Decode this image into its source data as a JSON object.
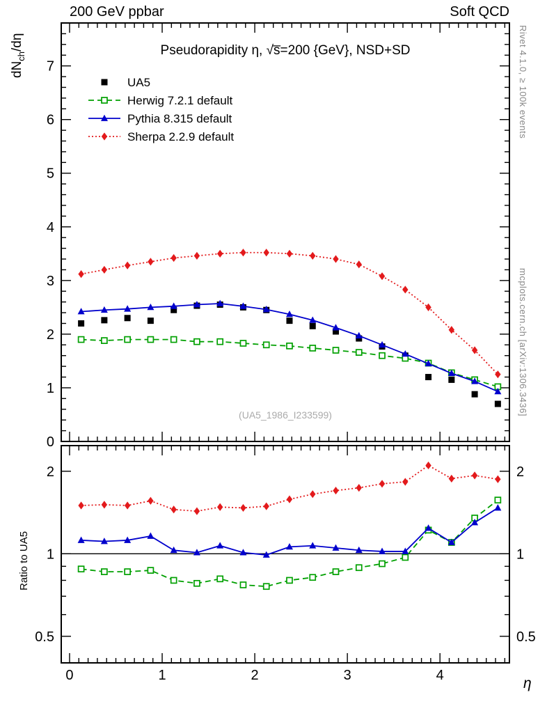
{
  "header": {
    "left": "200 GeV ppbar",
    "right": "Soft QCD"
  },
  "side_texts": {
    "rivet": "Rivet 4.1.0, ≥ 100k events",
    "mcplots": "mcplots.cern.ch [arXiv:1306.3436]"
  },
  "labels": {
    "ylabel_main_pre": "dN",
    "ylabel_main_sub": "ch",
    "ylabel_main_post": "/dη",
    "ylabel_ratio": "Ratio to UA5",
    "xlabel": "η",
    "watermark": "(UA5_1986_I233599)"
  },
  "chart_data": {
    "type": "line",
    "title": "Pseudorapidity η, √s̅=200 {GeV}, NSD+SD",
    "xlabel": "η",
    "ylabel": "dN_ch/dη",
    "ratio_label": "Ratio to UA5",
    "legend_position": "top-left",
    "grid": false,
    "x": [
      0.125,
      0.375,
      0.625,
      0.875,
      1.125,
      1.375,
      1.625,
      1.875,
      2.125,
      2.375,
      2.625,
      2.875,
      3.125,
      3.375,
      3.625,
      3.875,
      4.125,
      4.375,
      4.625
    ],
    "xlim": [
      -0.09,
      4.75
    ],
    "xticks": [
      0,
      1,
      2,
      3,
      4
    ],
    "main": {
      "scale": "linear",
      "ylim": [
        0,
        7.8
      ],
      "yticks": [
        0,
        1,
        2,
        3,
        4,
        5,
        6,
        7
      ]
    },
    "ratio": {
      "scale": "log",
      "ylim": [
        0.4,
        2.48
      ],
      "yticks": [
        0.5,
        1,
        2
      ],
      "yminor": [
        0.6,
        0.7,
        0.8,
        0.9
      ]
    },
    "series": [
      {
        "id": "ua5",
        "name": "UA5",
        "color": "#000000",
        "marker": "square-filled",
        "line": "none",
        "values": [
          2.2,
          2.26,
          2.3,
          2.25,
          2.45,
          2.53,
          2.55,
          2.5,
          2.45,
          2.25,
          2.15,
          2.05,
          1.92,
          1.77,
          1.6,
          1.2,
          1.15,
          0.88,
          0.7
        ],
        "ratio": null
      },
      {
        "id": "herwig",
        "name": "Herwig 7.2.1 default",
        "color": "#00a000",
        "marker": "square-open",
        "line": "dashed",
        "values": [
          1.9,
          1.88,
          1.9,
          1.9,
          1.9,
          1.86,
          1.86,
          1.83,
          1.8,
          1.78,
          1.74,
          1.7,
          1.66,
          1.6,
          1.55,
          1.46,
          1.28,
          1.15,
          1.02
        ],
        "ratio": [
          0.88,
          0.86,
          0.86,
          0.87,
          0.8,
          0.78,
          0.81,
          0.77,
          0.76,
          0.8,
          0.82,
          0.86,
          0.89,
          0.92,
          0.97,
          1.22,
          1.1,
          1.35,
          1.57
        ]
      },
      {
        "id": "pythia",
        "name": "Pythia 8.315 default",
        "color": "#0000cc",
        "marker": "triangle-filled",
        "line": "solid",
        "values": [
          2.42,
          2.45,
          2.47,
          2.5,
          2.52,
          2.55,
          2.57,
          2.52,
          2.46,
          2.37,
          2.26,
          2.12,
          1.97,
          1.8,
          1.63,
          1.45,
          1.27,
          1.12,
          0.93
        ],
        "ratio": [
          1.12,
          1.11,
          1.12,
          1.16,
          1.03,
          1.01,
          1.07,
          1.01,
          0.99,
          1.06,
          1.07,
          1.05,
          1.03,
          1.02,
          1.02,
          1.24,
          1.1,
          1.3,
          1.47
        ]
      },
      {
        "id": "sherpa",
        "name": "Sherpa 2.2.9 default",
        "color": "#e31a1c",
        "marker": "diamond-filled",
        "line": "dotted",
        "values": [
          3.12,
          3.2,
          3.28,
          3.35,
          3.42,
          3.46,
          3.5,
          3.52,
          3.52,
          3.5,
          3.46,
          3.4,
          3.3,
          3.08,
          2.83,
          2.5,
          2.08,
          1.7,
          1.25
        ],
        "ratio": [
          1.5,
          1.51,
          1.5,
          1.56,
          1.45,
          1.43,
          1.48,
          1.47,
          1.49,
          1.58,
          1.65,
          1.7,
          1.74,
          1.8,
          1.83,
          2.1,
          1.88,
          1.93,
          1.87
        ]
      }
    ]
  }
}
